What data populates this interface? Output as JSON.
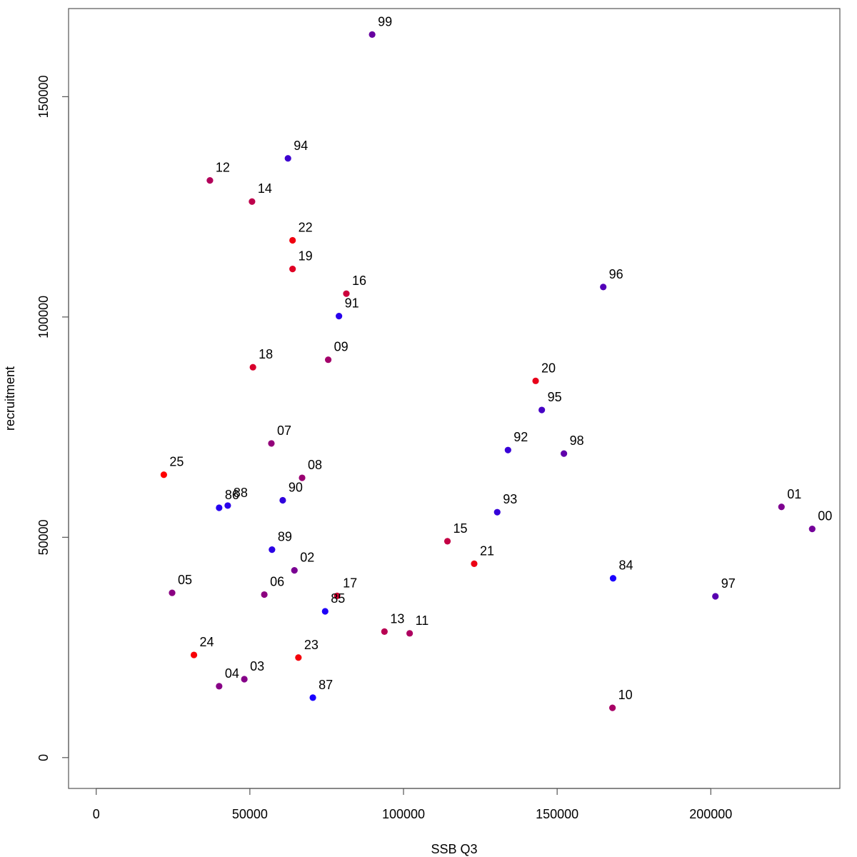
{
  "chart_data": {
    "type": "scatter",
    "title": "",
    "xlabel": "SSB Q3",
    "ylabel": "recruitment",
    "xlim": [
      -9000,
      242000
    ],
    "ylim": [
      -7000,
      170000
    ],
    "x_ticks": [
      0,
      50000,
      100000,
      150000,
      200000
    ],
    "y_ticks": [
      0,
      50000,
      100000,
      150000
    ],
    "x_tick_labels": [
      "0",
      "50000",
      "100000",
      "150000",
      "200000"
    ],
    "y_tick_labels": [
      "0",
      "50000",
      "100000",
      "150000"
    ],
    "grid": false,
    "legend": "none",
    "points": [
      {
        "label": "84",
        "x": 168200,
        "y": 40700,
        "color": "#1a00ff"
      },
      {
        "label": "85",
        "x": 74500,
        "y": 33200,
        "color": "#1f00f7"
      },
      {
        "label": "86",
        "x": 40000,
        "y": 56700,
        "color": "#2500f0"
      },
      {
        "label": "87",
        "x": 70500,
        "y": 13600,
        "color": "#1800ff"
      },
      {
        "label": "88",
        "x": 42800,
        "y": 57200,
        "color": "#2a00ea"
      },
      {
        "label": "89",
        "x": 57200,
        "y": 47200,
        "color": "#2a00e6"
      },
      {
        "label": "90",
        "x": 60700,
        "y": 58400,
        "color": "#3000dd"
      },
      {
        "label": "91",
        "x": 79000,
        "y": 100200,
        "color": "#2800ec"
      },
      {
        "label": "92",
        "x": 134000,
        "y": 69800,
        "color": "#3800d8"
      },
      {
        "label": "93",
        "x": 130500,
        "y": 55700,
        "color": "#3400d9"
      },
      {
        "label": "94",
        "x": 62400,
        "y": 136000,
        "color": "#3d00d0"
      },
      {
        "label": "95",
        "x": 145000,
        "y": 78900,
        "color": "#4600c5"
      },
      {
        "label": "96",
        "x": 165000,
        "y": 106800,
        "color": "#5200b8"
      },
      {
        "label": "97",
        "x": 201500,
        "y": 36600,
        "color": "#5800b0"
      },
      {
        "label": "98",
        "x": 152200,
        "y": 69000,
        "color": "#6000ab"
      },
      {
        "label": "99",
        "x": 89800,
        "y": 164100,
        "color": "#6700a0"
      },
      {
        "label": "00",
        "x": 233000,
        "y": 51900,
        "color": "#74009a"
      },
      {
        "label": "01",
        "x": 223000,
        "y": 56900,
        "color": "#7e0090"
      },
      {
        "label": "02",
        "x": 64500,
        "y": 42500,
        "color": "#7a0092"
      },
      {
        "label": "03",
        "x": 48200,
        "y": 17800,
        "color": "#850088"
      },
      {
        "label": "04",
        "x": 40000,
        "y": 16200,
        "color": "#880086"
      },
      {
        "label": "05",
        "x": 24700,
        "y": 37400,
        "color": "#8a0082"
      },
      {
        "label": "06",
        "x": 54700,
        "y": 37000,
        "color": "#8c0080"
      },
      {
        "label": "07",
        "x": 57000,
        "y": 71300,
        "color": "#93007a"
      },
      {
        "label": "08",
        "x": 67000,
        "y": 63500,
        "color": "#9a0072"
      },
      {
        "label": "09",
        "x": 75500,
        "y": 90300,
        "color": "#a3006a"
      },
      {
        "label": "10",
        "x": 168000,
        "y": 11300,
        "color": "#a80066"
      },
      {
        "label": "11",
        "x": 102000,
        "y": 28200,
        "color": "#ae0060"
      },
      {
        "label": "12",
        "x": 37000,
        "y": 131000,
        "color": "#b2005a"
      },
      {
        "label": "13",
        "x": 93800,
        "y": 28600,
        "color": "#b80052"
      },
      {
        "label": "14",
        "x": 50700,
        "y": 126200,
        "color": "#bd004c"
      },
      {
        "label": "15",
        "x": 114300,
        "y": 49100,
        "color": "#c40044"
      },
      {
        "label": "16",
        "x": 81400,
        "y": 105300,
        "color": "#cc003c"
      },
      {
        "label": "17",
        "x": 78400,
        "y": 36700,
        "color": "#d20032"
      },
      {
        "label": "18",
        "x": 51000,
        "y": 88600,
        "color": "#d8002c"
      },
      {
        "label": "19",
        "x": 63900,
        "y": 110900,
        "color": "#e00024"
      },
      {
        "label": "20",
        "x": 143000,
        "y": 85500,
        "color": "#e8001a"
      },
      {
        "label": "21",
        "x": 123000,
        "y": 44000,
        "color": "#ec0014"
      },
      {
        "label": "22",
        "x": 63900,
        "y": 117400,
        "color": "#f00010"
      },
      {
        "label": "23",
        "x": 65800,
        "y": 22700,
        "color": "#f4000a"
      },
      {
        "label": "24",
        "x": 31800,
        "y": 23300,
        "color": "#f80006"
      },
      {
        "label": "25",
        "x": 22000,
        "y": 64200,
        "color": "#ff0000"
      }
    ]
  }
}
